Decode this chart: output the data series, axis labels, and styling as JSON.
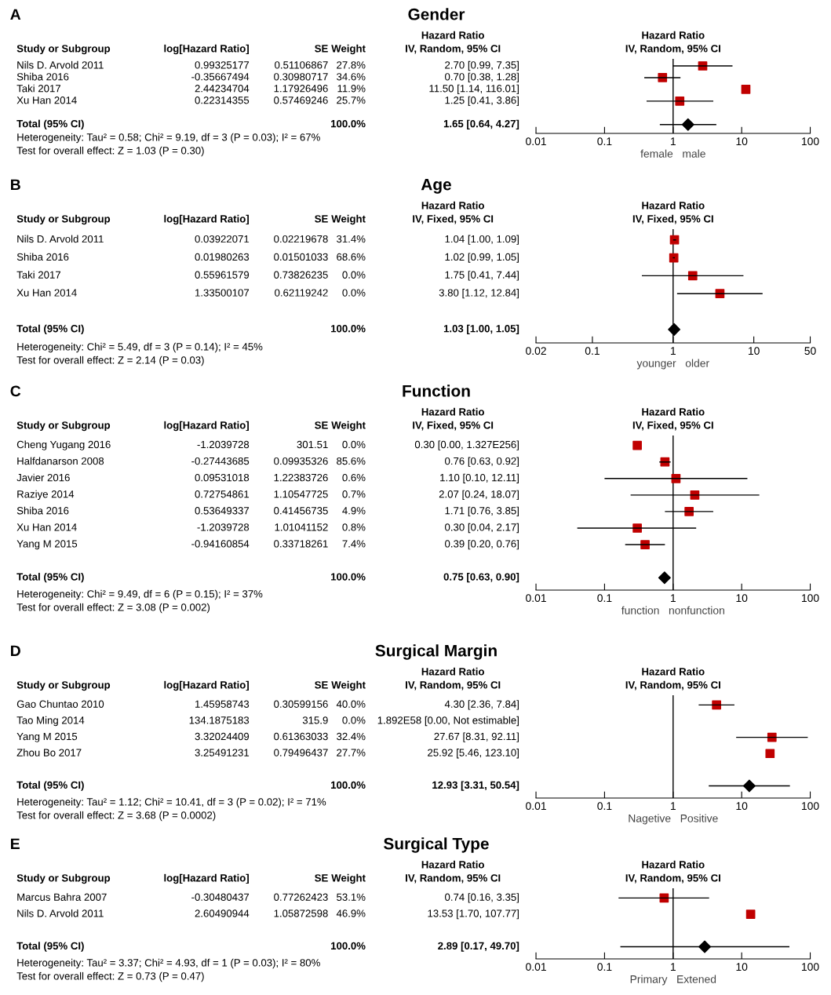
{
  "chart_data": [
    {
      "type": "scatter",
      "orientation": "horizontal",
      "tick_labels": "x",
      "title": "Gender",
      "xlabel": "female   male",
      "log": "x",
      "xlim": [
        0.01,
        100
      ],
      "xticks": [
        0.01,
        0.1,
        1,
        10,
        100
      ],
      "categories": [
        "Nils D. Arvold 2011",
        "Shiba 2016",
        "Taki 2017",
        "Xu Han 2014",
        null,
        "Total (95% CI)"
      ],
      "series": [
        {
          "color": "#c00000",
          "marker": "square",
          "values": [
            2.7,
            0.7,
            11.5,
            1.25,
            null,
            null
          ],
          "errors": [
            [
              0.99,
              7.35
            ],
            [
              0.38,
              1.28
            ],
            null,
            [
              0.41,
              3.86
            ],
            null,
            null
          ]
        },
        {
          "color": "#000000",
          "marker": "diamond",
          "values": [
            null,
            null,
            null,
            null,
            null,
            1.65
          ],
          "errors": [
            null,
            null,
            null,
            null,
            null,
            [
              0.64,
              4.27
            ]
          ]
        }
      ],
      "value_labels": [
        "2.70 [0.99, 7.35]",
        "0.70 [0.38, 1.28]",
        "11.50 [1.14, 116.01]",
        "1.25 [0.41, 3.86]",
        null,
        "1.65 [0.64, 4.27]"
      ],
      "ref_lines": [
        {
          "axis": "x",
          "value": 1,
          "color": "#000000"
        }
      ],
      "annotations": [
        "A",
        "Study or Subgroup",
        "log[Hazard Ratio]",
        "SE",
        "Weight",
        "Hazard Ratio",
        "IV, Random, 95% CI",
        "Hazard Ratio",
        "IV, Random, 95% CI",
        "0.99325177",
        "0.51106867",
        "27.8%",
        "-0.35667494",
        "0.30980717",
        "34.6%",
        "2.44234704",
        "1.17926496",
        "11.9%",
        "0.22314355",
        "0.57469246",
        "25.7%",
        "100.0%",
        "Heterogeneity: Tau² = 0.58; Chi² = 9.19, df = 3 (P = 0.03); I² = 67%",
        "Test for overall effect: Z = 1.03 (P = 0.30)"
      ]
    },
    {
      "type": "scatter",
      "orientation": "horizontal",
      "tick_labels": "x",
      "title": "Age",
      "xlabel": "younger   older",
      "log": "x",
      "xlim": [
        0.02,
        50
      ],
      "xticks": [
        0.02,
        0.1,
        1,
        10,
        50
      ],
      "categories": [
        "Nils D. Arvold 2011",
        "Shiba 2016",
        "Taki 2017",
        "Xu Han 2014",
        null,
        "Total (95% CI)"
      ],
      "series": [
        {
          "color": "#c00000",
          "marker": "square",
          "values": [
            1.04,
            1.02,
            1.75,
            3.8,
            null,
            null
          ],
          "errors": [
            [
              1.0,
              1.09
            ],
            [
              0.99,
              1.05
            ],
            [
              0.41,
              7.44
            ],
            [
              1.12,
              12.84
            ],
            null,
            null
          ]
        },
        {
          "color": "#000000",
          "marker": "diamond",
          "values": [
            null,
            null,
            null,
            null,
            null,
            1.03
          ],
          "errors": [
            null,
            null,
            null,
            null,
            null,
            [
              1.0,
              1.05
            ]
          ]
        }
      ],
      "value_labels": [
        "1.04 [1.00, 1.09]",
        "1.02 [0.99, 1.05]",
        "1.75 [0.41, 7.44]",
        "3.80 [1.12, 12.84]",
        null,
        "1.03 [1.00, 1.05]"
      ],
      "ref_lines": [
        {
          "axis": "x",
          "value": 1,
          "color": "#000000"
        }
      ],
      "annotations": [
        "B",
        "Study or Subgroup",
        "log[Hazard Ratio]",
        "SE",
        "Weight",
        "Hazard Ratio",
        "IV, Fixed, 95% CI",
        "Hazard Ratio",
        "IV, Fixed, 95% CI",
        "0.03922071",
        "0.02219678",
        "31.4%",
        "0.01980263",
        "0.01501033",
        "68.6%",
        "0.55961579",
        "0.73826235",
        "0.0%",
        "1.33500107",
        "0.62119242",
        "0.0%",
        "100.0%",
        "Heterogeneity: Chi² = 5.49, df = 3 (P = 0.14); I² = 45%",
        "Test for overall effect: Z = 2.14 (P = 0.03)"
      ]
    },
    {
      "type": "scatter",
      "orientation": "horizontal",
      "tick_labels": "x",
      "title": "Function",
      "xlabel": "function   nonfunction",
      "log": "x",
      "xlim": [
        0.01,
        100
      ],
      "xticks": [
        0.01,
        0.1,
        1,
        10,
        100
      ],
      "categories": [
        "Cheng Yugang 2016",
        "Halfdanarson 2008",
        "Javier 2016",
        "Raziye 2014",
        "Shiba 2016",
        "Xu Han 2014",
        "Yang M 2015",
        null,
        "Total (95% CI)"
      ],
      "series": [
        {
          "color": "#c00000",
          "marker": "square",
          "values": [
            0.3,
            0.76,
            1.1,
            2.07,
            1.71,
            0.3,
            0.39,
            null,
            null
          ],
          "errors": [
            null,
            [
              0.63,
              0.92
            ],
            [
              0.1,
              12.11
            ],
            [
              0.24,
              18.07
            ],
            [
              0.76,
              3.85
            ],
            [
              0.04,
              2.17
            ],
            [
              0.2,
              0.76
            ],
            null,
            null
          ]
        },
        {
          "color": "#000000",
          "marker": "diamond",
          "values": [
            null,
            null,
            null,
            null,
            null,
            null,
            null,
            null,
            0.75
          ],
          "errors": [
            null,
            null,
            null,
            null,
            null,
            null,
            null,
            null,
            [
              0.63,
              0.9
            ]
          ]
        }
      ],
      "value_labels": [
        "0.30 [0.00, 1.327E256]",
        "0.76 [0.63, 0.92]",
        "1.10 [0.10, 12.11]",
        "2.07 [0.24, 18.07]",
        "1.71 [0.76, 3.85]",
        "0.30 [0.04, 2.17]",
        "0.39 [0.20, 0.76]",
        null,
        "0.75 [0.63, 0.90]"
      ],
      "ref_lines": [
        {
          "axis": "x",
          "value": 1,
          "color": "#000000"
        }
      ],
      "annotations": [
        "C",
        "Study or Subgroup",
        "log[Hazard Ratio]",
        "SE",
        "Weight",
        "Hazard Ratio",
        "IV, Fixed, 95% CI",
        "Hazard Ratio",
        "IV, Fixed, 95% CI",
        "-1.2039728",
        "301.51",
        "0.0%",
        "-0.27443685",
        "0.09935326",
        "85.6%",
        "0.09531018",
        "1.22383726",
        "0.6%",
        "0.72754861",
        "1.10547725",
        "0.7%",
        "0.53649337",
        "0.41456735",
        "4.9%",
        "-1.2039728",
        "1.01041152",
        "0.8%",
        "-0.94160854",
        "0.33718261",
        "7.4%",
        "100.0%",
        "Heterogeneity: Chi² = 9.49, df = 6 (P = 0.15); I² = 37%",
        "Test for overall effect: Z = 3.08 (P = 0.002)"
      ]
    },
    {
      "type": "scatter",
      "orientation": "horizontal",
      "tick_labels": "x",
      "title": "Surgical Margin",
      "xlabel": "Nagetive   Positive",
      "log": "x",
      "xlim": [
        0.01,
        100
      ],
      "xticks": [
        0.01,
        0.1,
        1,
        10,
        100
      ],
      "categories": [
        "Gao Chuntao 2010",
        "Tao Ming 2014",
        "Yang M 2015",
        "Zhou Bo 2017",
        null,
        "Total (95% CI)"
      ],
      "series": [
        {
          "color": "#c00000",
          "marker": "square",
          "values": [
            4.3,
            null,
            27.67,
            25.92,
            null,
            null
          ],
          "errors": [
            [
              2.36,
              7.84
            ],
            null,
            [
              8.31,
              92.11
            ],
            null,
            null,
            null
          ]
        },
        {
          "color": "#000000",
          "marker": "diamond",
          "values": [
            null,
            null,
            null,
            null,
            null,
            12.93
          ],
          "errors": [
            null,
            null,
            null,
            null,
            null,
            [
              3.31,
              50.54
            ]
          ]
        }
      ],
      "value_labels": [
        "4.30 [2.36, 7.84]",
        "1.892E58 [0.00, Not estimable]",
        "27.67 [8.31, 92.11]",
        "25.92 [5.46, 123.10]",
        null,
        "12.93 [3.31, 50.54]"
      ],
      "ref_lines": [
        {
          "axis": "x",
          "value": 1,
          "color": "#000000"
        }
      ],
      "annotations": [
        "D",
        "Study or Subgroup",
        "log[Hazard Ratio]",
        "SE",
        "Weight",
        "Hazard Ratio",
        "IV, Random, 95% CI",
        "Hazard Ratio",
        "IV, Random, 95% CI",
        "1.45958743",
        "0.30599156",
        "40.0%",
        "134.1875183",
        "315.9",
        "0.0%",
        "3.32024409",
        "0.61363033",
        "32.4%",
        "3.25491231",
        "0.79496437",
        "27.7%",
        "100.0%",
        "Heterogeneity: Tau² = 1.12; Chi² = 10.41, df = 3 (P = 0.02); I² = 71%",
        "Test for overall effect: Z = 3.68 (P = 0.0002)"
      ]
    },
    {
      "type": "scatter",
      "orientation": "horizontal",
      "tick_labels": "x",
      "title": "Surgical Type",
      "xlabel": "Primary   Extened",
      "log": "x",
      "xlim": [
        0.01,
        100
      ],
      "xticks": [
        0.01,
        0.1,
        1,
        10,
        100
      ],
      "categories": [
        "Marcus Bahra 2007",
        "Nils D. Arvold 2011",
        null,
        "Total (95% CI)"
      ],
      "series": [
        {
          "color": "#c00000",
          "marker": "square",
          "values": [
            0.74,
            13.53,
            null,
            null
          ],
          "errors": [
            [
              0.16,
              3.35
            ],
            null,
            null,
            null
          ]
        },
        {
          "color": "#000000",
          "marker": "diamond",
          "values": [
            null,
            null,
            null,
            2.89
          ],
          "errors": [
            null,
            null,
            null,
            [
              0.17,
              49.7
            ]
          ]
        }
      ],
      "value_labels": [
        "0.74 [0.16, 3.35]",
        "13.53 [1.70, 107.77]",
        null,
        "2.89 [0.17, 49.70]"
      ],
      "ref_lines": [
        {
          "axis": "x",
          "value": 1,
          "color": "#000000"
        }
      ],
      "annotations": [
        "E",
        "Study or Subgroup",
        "log[Hazard Ratio]",
        "SE",
        "Weight",
        "Hazard Ratio",
        "IV, Random, 95% CI",
        "Hazard Ratio",
        "IV, Random, 95% CI",
        "-0.30480437",
        "0.77262423",
        "53.1%",
        "2.60490944",
        "1.05872598",
        "46.9%",
        "100.0%",
        "Heterogeneity: Tau² = 3.37; Chi² = 4.93, df = 1 (P = 0.03); I² = 80%",
        "Test for overall effect: Z = 0.73 (P = 0.47)"
      ]
    }
  ]
}
